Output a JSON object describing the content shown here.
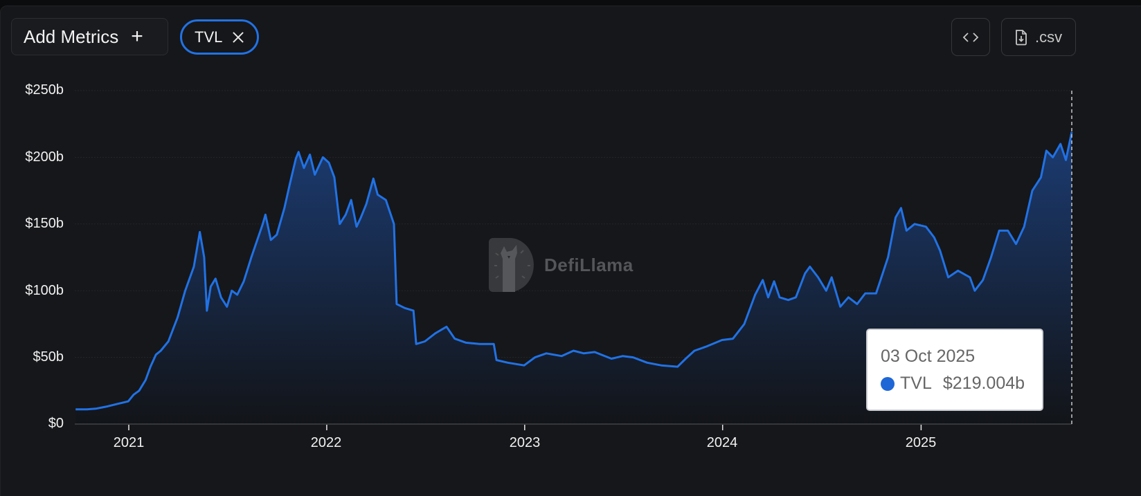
{
  "toolbar": {
    "add_metrics_label": "Add Metrics",
    "add_icon": "plus-icon",
    "active_metric_chip": "TVL",
    "remove_icon": "close-icon",
    "embed_icon": "code-brackets-icon",
    "csv_icon": "file-download-icon",
    "csv_label": ".csv"
  },
  "watermark": {
    "brand": "DefiLlama",
    "icon": "llama-logo-icon"
  },
  "tooltip": {
    "date": "03 Oct 2025",
    "series_label": "TVL",
    "value": "$219.004b",
    "dot_color": "#1f67d6"
  },
  "colors": {
    "line": "#2172e5",
    "background": "#16171a",
    "fill_top": "#1c3e78",
    "fill_bottom": "#121418"
  },
  "chart_data": {
    "type": "area",
    "title": "",
    "xlabel": "",
    "ylabel": "TVL",
    "series": [
      {
        "name": "TVL",
        "color": "#2172e5"
      }
    ],
    "y_ticks": [
      "$0",
      "$50b",
      "$100b",
      "$150b",
      "$200b",
      "$250b"
    ],
    "y_tick_values": [
      0,
      50,
      100,
      150,
      200,
      250
    ],
    "x_ticks": [
      "2021",
      "2022",
      "2023",
      "2024",
      "2025"
    ],
    "ylim": [
      0,
      250
    ],
    "xlim": [
      "2020-09",
      "2025-10-03"
    ],
    "grid": true,
    "legend": "none",
    "crosshair_at": "03 Oct 2025",
    "points": [
      [
        "2020-09-25",
        11
      ],
      [
        "2020-10-15",
        11
      ],
      [
        "2020-11-01",
        11.5
      ],
      [
        "2020-11-20",
        13
      ],
      [
        "2020-12-10",
        15
      ],
      [
        "2020-12-31",
        17
      ],
      [
        "2021-01-10",
        22
      ],
      [
        "2021-01-20",
        25
      ],
      [
        "2021-02-01",
        33
      ],
      [
        "2021-02-10",
        43
      ],
      [
        "2021-02-20",
        52
      ],
      [
        "2021-03-01",
        55
      ],
      [
        "2021-03-15",
        62
      ],
      [
        "2021-04-01",
        80
      ],
      [
        "2021-04-15",
        100
      ],
      [
        "2021-05-01",
        118
      ],
      [
        "2021-05-12",
        144
      ],
      [
        "2021-05-20",
        125
      ],
      [
        "2021-05-25",
        85
      ],
      [
        "2021-06-01",
        103
      ],
      [
        "2021-06-10",
        109
      ],
      [
        "2021-06-20",
        95
      ],
      [
        "2021-07-01",
        88
      ],
      [
        "2021-07-10",
        100
      ],
      [
        "2021-07-20",
        97
      ],
      [
        "2021-08-01",
        107
      ],
      [
        "2021-08-15",
        125
      ],
      [
        "2021-08-25",
        137
      ],
      [
        "2021-09-05",
        150
      ],
      [
        "2021-09-10",
        157
      ],
      [
        "2021-09-20",
        138
      ],
      [
        "2021-10-01",
        142
      ],
      [
        "2021-10-15",
        162
      ],
      [
        "2021-10-25",
        180
      ],
      [
        "2021-11-05",
        199
      ],
      [
        "2021-11-10",
        204
      ],
      [
        "2021-11-20",
        192
      ],
      [
        "2021-12-01",
        202
      ],
      [
        "2021-12-10",
        187
      ],
      [
        "2021-12-25",
        200
      ],
      [
        "2022-01-05",
        196
      ],
      [
        "2022-01-15",
        185
      ],
      [
        "2022-01-25",
        150
      ],
      [
        "2022-02-05",
        157
      ],
      [
        "2022-02-15",
        168
      ],
      [
        "2022-02-25",
        148
      ],
      [
        "2022-03-05",
        155
      ],
      [
        "2022-03-15",
        165
      ],
      [
        "2022-03-28",
        184
      ],
      [
        "2022-04-05",
        172
      ],
      [
        "2022-04-20",
        168
      ],
      [
        "2022-05-05",
        150
      ],
      [
        "2022-05-10",
        90
      ],
      [
        "2022-05-25",
        87
      ],
      [
        "2022-06-10",
        85
      ],
      [
        "2022-06-15",
        60
      ],
      [
        "2022-07-01",
        62
      ],
      [
        "2022-07-20",
        68
      ],
      [
        "2022-08-10",
        73
      ],
      [
        "2022-08-25",
        64
      ],
      [
        "2022-09-15",
        61
      ],
      [
        "2022-10-10",
        60
      ],
      [
        "2022-11-05",
        60
      ],
      [
        "2022-11-10",
        48
      ],
      [
        "2022-12-01",
        46
      ],
      [
        "2022-12-31",
        44
      ],
      [
        "2023-01-20",
        50
      ],
      [
        "2023-02-10",
        53
      ],
      [
        "2023-03-10",
        51
      ],
      [
        "2023-04-01",
        55
      ],
      [
        "2023-04-20",
        53
      ],
      [
        "2023-05-10",
        54
      ],
      [
        "2023-06-10",
        49
      ],
      [
        "2023-07-01",
        51
      ],
      [
        "2023-07-20",
        50
      ],
      [
        "2023-08-15",
        46
      ],
      [
        "2023-09-10",
        44
      ],
      [
        "2023-10-10",
        43
      ],
      [
        "2023-10-25",
        49
      ],
      [
        "2023-11-10",
        55
      ],
      [
        "2023-12-01",
        58
      ],
      [
        "2023-12-31",
        63
      ],
      [
        "2024-01-20",
        64
      ],
      [
        "2024-02-10",
        75
      ],
      [
        "2024-03-01",
        97
      ],
      [
        "2024-03-15",
        108
      ],
      [
        "2024-03-25",
        95
      ],
      [
        "2024-04-05",
        107
      ],
      [
        "2024-04-15",
        95
      ],
      [
        "2024-05-01",
        93
      ],
      [
        "2024-05-15",
        95
      ],
      [
        "2024-06-01",
        113
      ],
      [
        "2024-06-10",
        118
      ],
      [
        "2024-06-25",
        110
      ],
      [
        "2024-07-10",
        100
      ],
      [
        "2024-07-20",
        110
      ],
      [
        "2024-08-05",
        88
      ],
      [
        "2024-08-20",
        95
      ],
      [
        "2024-09-05",
        90
      ],
      [
        "2024-09-20",
        98
      ],
      [
        "2024-10-10",
        98
      ],
      [
        "2024-11-01",
        125
      ],
      [
        "2024-11-15",
        155
      ],
      [
        "2024-11-25",
        162
      ],
      [
        "2024-12-05",
        145
      ],
      [
        "2024-12-20",
        150
      ],
      [
        "2025-01-10",
        148
      ],
      [
        "2025-01-25",
        140
      ],
      [
        "2025-02-05",
        130
      ],
      [
        "2025-02-20",
        110
      ],
      [
        "2025-03-10",
        115
      ],
      [
        "2025-04-01",
        110
      ],
      [
        "2025-04-10",
        100
      ],
      [
        "2025-04-25",
        108
      ],
      [
        "2025-05-10",
        125
      ],
      [
        "2025-05-25",
        145
      ],
      [
        "2025-06-10",
        145
      ],
      [
        "2025-06-25",
        135
      ],
      [
        "2025-07-10",
        148
      ],
      [
        "2025-07-25",
        175
      ],
      [
        "2025-08-10",
        185
      ],
      [
        "2025-08-20",
        205
      ],
      [
        "2025-09-01",
        200
      ],
      [
        "2025-09-15",
        210
      ],
      [
        "2025-09-25",
        198
      ],
      [
        "2025-10-03",
        219.004
      ]
    ]
  }
}
